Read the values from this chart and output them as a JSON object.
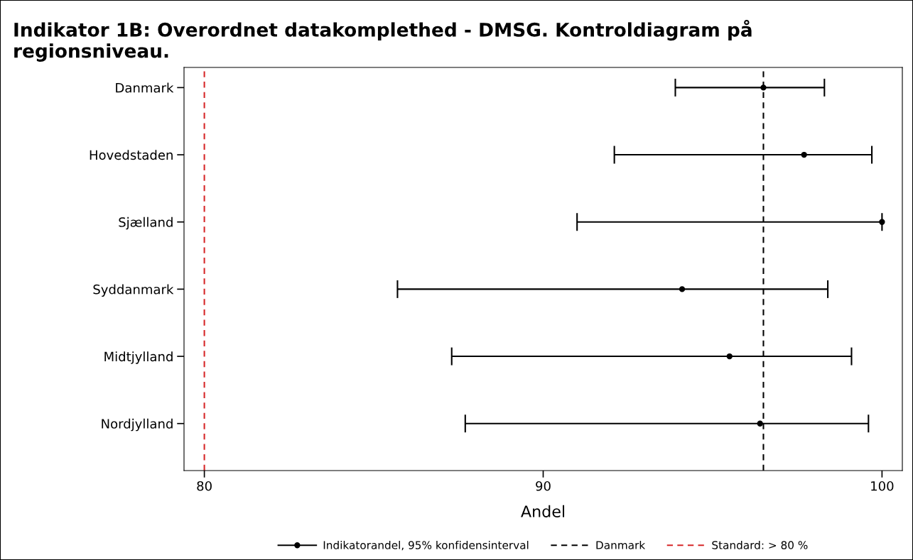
{
  "chart_data": {
    "type": "scatter",
    "orientation": "horizontal",
    "title": "Indikator 1B: Overordnet datakomplethed - DMSG. Kontroldiagram på regionsniveau.",
    "xlabel": "Andel",
    "categories": [
      "Danmark",
      "Hovedstaden",
      "Sjælland",
      "Syddanmark",
      "Midtjylland",
      "Nordjylland"
    ],
    "series": [
      {
        "name": "Indikatorandel, 95% konfidensinterval",
        "color": "#000000",
        "values": [
          96.5,
          97.7,
          100,
          94.1,
          95.5,
          96.4
        ],
        "errors": [
          [
            93.9,
            98.3
          ],
          [
            92.1,
            99.7
          ],
          [
            91.0,
            100
          ],
          [
            85.7,
            98.4
          ],
          [
            87.3,
            99.1
          ],
          [
            87.7,
            99.6
          ]
        ]
      }
    ],
    "ref_lines": [
      {
        "axis": "x",
        "value": 96.5,
        "label": "Danmark",
        "color": "#000000",
        "line_style": "dashed"
      },
      {
        "axis": "x",
        "value": 80,
        "label": "Standard: > 80 %",
        "color": "#d62728",
        "line_style": "dashed"
      }
    ],
    "xlim": [
      79.4,
      100.6
    ],
    "xticks": [
      80,
      90,
      100
    ],
    "marker": "circle",
    "grid": false,
    "legend": "bottom"
  }
}
